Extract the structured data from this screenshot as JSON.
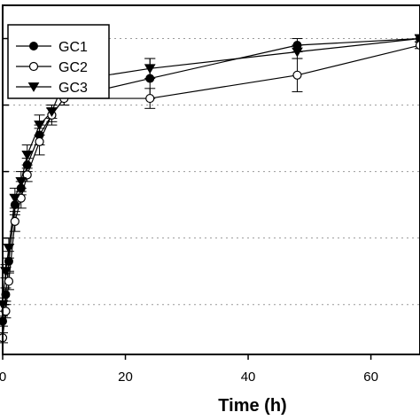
{
  "chart_data": {
    "type": "line",
    "xlabel": "Time (h)",
    "ylabel": "",
    "xlim": [
      0,
      68
    ],
    "ylim": [
      0,
      105
    ],
    "x_ticks": [
      0,
      20,
      40,
      60
    ],
    "y_gridlines": [
      15,
      35,
      55,
      75,
      95
    ],
    "grid": "horizontal dotted",
    "legend_position": "top-left",
    "series": [
      {
        "name": "GC1",
        "marker": "filled-circle",
        "color": "#000000",
        "points": [
          {
            "x": 0,
            "y": 10,
            "err": 1.5
          },
          {
            "x": 0.5,
            "y": 18,
            "err": 2
          },
          {
            "x": 1,
            "y": 28,
            "err": 3
          },
          {
            "x": 2,
            "y": 45,
            "err": 3
          },
          {
            "x": 3,
            "y": 50,
            "err": 2
          },
          {
            "x": 4,
            "y": 57,
            "err": 2
          },
          {
            "x": 6,
            "y": 66,
            "err": 3
          },
          {
            "x": 8,
            "y": 72,
            "err": 2
          },
          {
            "x": 10,
            "y": 77,
            "err": 2
          },
          {
            "x": 24,
            "y": 83,
            "err": 6
          },
          {
            "x": 48,
            "y": 93,
            "err": 2
          },
          {
            "x": 68,
            "y": 95,
            "err": 1
          }
        ]
      },
      {
        "name": "GC2",
        "marker": "open-circle",
        "color": "#000000",
        "points": [
          {
            "x": 0,
            "y": 5,
            "err": 1.5
          },
          {
            "x": 0.5,
            "y": 13,
            "err": 2
          },
          {
            "x": 1,
            "y": 22,
            "err": 2.5
          },
          {
            "x": 2,
            "y": 40,
            "err": 3
          },
          {
            "x": 3,
            "y": 47,
            "err": 3
          },
          {
            "x": 4,
            "y": 54,
            "err": 2
          },
          {
            "x": 6,
            "y": 64,
            "err": 4
          },
          {
            "x": 8,
            "y": 72,
            "err": 3
          },
          {
            "x": 10,
            "y": 77,
            "err": 2
          },
          {
            "x": 24,
            "y": 77,
            "err": 3
          },
          {
            "x": 48,
            "y": 84,
            "err": 5
          },
          {
            "x": 68,
            "y": 93,
            "err": 1
          }
        ]
      },
      {
        "name": "GC3",
        "marker": "filled-triangle-down",
        "color": "#000000",
        "points": [
          {
            "x": 0,
            "y": 15,
            "err": 2
          },
          {
            "x": 0.5,
            "y": 25,
            "err": 2
          },
          {
            "x": 1,
            "y": 32,
            "err": 3
          },
          {
            "x": 2,
            "y": 47,
            "err": 3
          },
          {
            "x": 3,
            "y": 52,
            "err": 3
          },
          {
            "x": 4,
            "y": 60,
            "err": 3
          },
          {
            "x": 6,
            "y": 69,
            "err": 3
          },
          {
            "x": 8,
            "y": 73,
            "err": 2
          },
          {
            "x": 10,
            "y": 82,
            "err": 2
          },
          {
            "x": 24,
            "y": 86,
            "err": 3
          },
          {
            "x": 48,
            "y": 91,
            "err": 2
          },
          {
            "x": 68,
            "y": 95,
            "err": 1
          }
        ]
      }
    ]
  }
}
